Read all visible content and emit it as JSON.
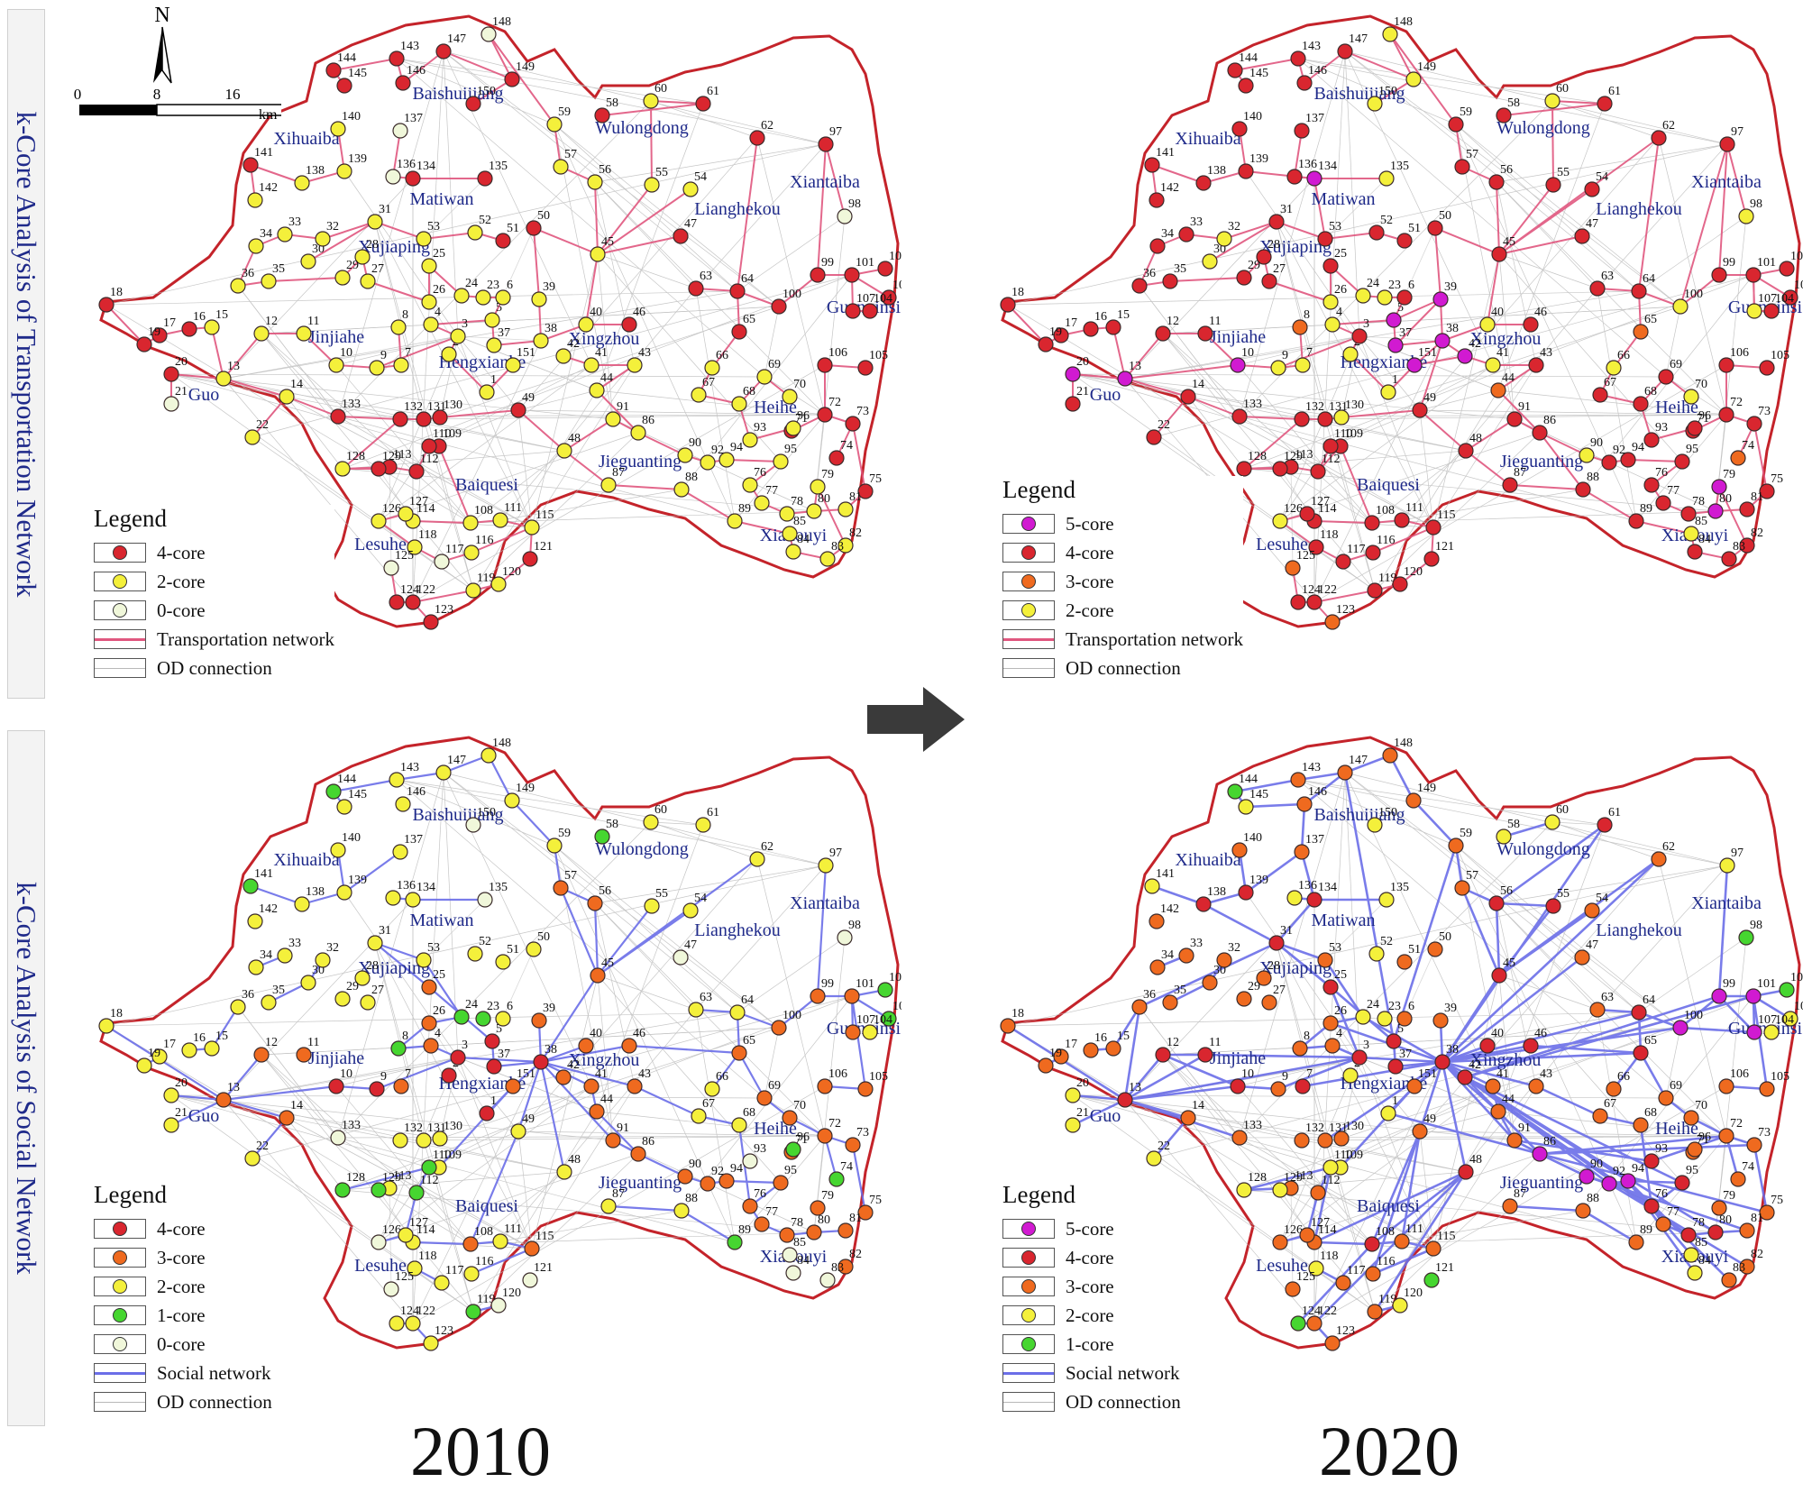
{
  "rows": {
    "transport_label": "k-Core Analysis of Transportation Network",
    "social_label": "k-Core Analysis of Social Network"
  },
  "years": {
    "left": "2010",
    "right": "2020"
  },
  "north_label": "N",
  "scale": {
    "ticks": [
      "0",
      "8",
      "16"
    ],
    "unit": "km"
  },
  "colors": {
    "core5": "#d11ad1",
    "core4": "#d9262f",
    "core3": "#ef6a1f",
    "core2": "#f4f03b",
    "core1": "#46d630",
    "core0": "#f0f7da",
    "transport_line": "#e0577f",
    "social_line": "#6b6ee8",
    "od_line": "#b8b8b8",
    "boundary": "#c4232a"
  },
  "places": [
    "Baishuijiang",
    "Wulongdong",
    "Xihuaiba",
    "Matiwan",
    "Xujiaping",
    "Xiantaiba",
    "Lianghekou",
    "Guanyinsi",
    "Jinjiahe",
    "Hengxianhe",
    "Xingzhou",
    "Guo",
    "Heihe",
    "Jieguanting",
    "Baiquesi",
    "Lesuhe",
    "Xiakouyi"
  ],
  "panels": {
    "t2010": {
      "legend_title": "Legend",
      "items": [
        {
          "label": "4-core",
          "kind": "core",
          "core": 4
        },
        {
          "label": "2-core",
          "kind": "core",
          "core": 2
        },
        {
          "label": "0-core",
          "kind": "core",
          "core": 0
        },
        {
          "label": "Transportation network",
          "kind": "line",
          "line": "transport"
        },
        {
          "label": "OD connection",
          "kind": "line",
          "line": "od"
        }
      ]
    },
    "t2020": {
      "legend_title": "Legend",
      "items": [
        {
          "label": "5-core",
          "kind": "core",
          "core": 5
        },
        {
          "label": "4-core",
          "kind": "core",
          "core": 4
        },
        {
          "label": "3-core",
          "kind": "core",
          "core": 3
        },
        {
          "label": "2-core",
          "kind": "core",
          "core": 2
        },
        {
          "label": "Transportation network",
          "kind": "line",
          "line": "transport"
        },
        {
          "label": "OD connection",
          "kind": "line",
          "line": "od"
        }
      ]
    },
    "s2010": {
      "legend_title": "Legend",
      "items": [
        {
          "label": "4-core",
          "kind": "core",
          "core": 4
        },
        {
          "label": "3-core",
          "kind": "core",
          "core": 3
        },
        {
          "label": "2-core",
          "kind": "core",
          "core": 2
        },
        {
          "label": "1-core",
          "kind": "core",
          "core": 1
        },
        {
          "label": "0-core",
          "kind": "core",
          "core": 0
        },
        {
          "label": "Social network",
          "kind": "line",
          "line": "social"
        },
        {
          "label": "OD connection",
          "kind": "line",
          "line": "od"
        }
      ]
    },
    "s2020": {
      "legend_title": "Legend",
      "items": [
        {
          "label": "5-core",
          "kind": "core",
          "core": 5
        },
        {
          "label": "4-core",
          "kind": "core",
          "core": 4
        },
        {
          "label": "3-core",
          "kind": "core",
          "core": 3
        },
        {
          "label": "2-core",
          "kind": "core",
          "core": 2
        },
        {
          "label": "1-core",
          "kind": "core",
          "core": 1
        },
        {
          "label": "Social network",
          "kind": "line",
          "line": "social"
        },
        {
          "label": "OD connection",
          "kind": "line",
          "line": "od"
        }
      ]
    }
  },
  "nodes": [
    {
      "id": "1",
      "c": [
        2,
        2,
        4,
        2
      ]
    },
    {
      "id": "2",
      "c": [
        2,
        2,
        4,
        2
      ]
    },
    {
      "id": "3",
      "c": [
        2,
        4,
        4,
        4
      ]
    },
    {
      "id": "4",
      "c": [
        2,
        2,
        3,
        3
      ]
    },
    {
      "id": "5",
      "c": [
        2,
        5,
        4,
        4
      ]
    },
    {
      "id": "6",
      "c": [
        2,
        4,
        2,
        3
      ]
    },
    {
      "id": "7",
      "c": [
        2,
        2,
        3,
        4
      ]
    },
    {
      "id": "8",
      "c": [
        2,
        3,
        1,
        3
      ]
    },
    {
      "id": "9",
      "c": [
        2,
        2,
        4,
        3
      ]
    },
    {
      "id": "10",
      "c": [
        2,
        5,
        4,
        4
      ]
    },
    {
      "id": "11",
      "c": [
        2,
        4,
        3,
        4
      ]
    },
    {
      "id": "12",
      "c": [
        2,
        4,
        3,
        4
      ]
    },
    {
      "id": "13",
      "c": [
        2,
        5,
        3,
        4
      ]
    },
    {
      "id": "14",
      "c": [
        2,
        4,
        3,
        3
      ]
    },
    {
      "id": "15",
      "c": [
        2,
        4,
        2,
        3
      ]
    },
    {
      "id": "16",
      "c": [
        4,
        4,
        2,
        3
      ]
    },
    {
      "id": "17",
      "c": [
        4,
        4,
        2,
        3
      ]
    },
    {
      "id": "18",
      "c": [
        4,
        4,
        2,
        3
      ]
    },
    {
      "id": "19",
      "c": [
        4,
        4,
        2,
        3
      ]
    },
    {
      "id": "20",
      "c": [
        4,
        5,
        2,
        2
      ]
    },
    {
      "id": "21",
      "c": [
        0,
        4,
        2,
        2
      ]
    },
    {
      "id": "22",
      "c": [
        2,
        4,
        2,
        2
      ]
    },
    {
      "id": "23",
      "c": [
        2,
        2,
        1,
        2
      ]
    },
    {
      "id": "24",
      "c": [
        2,
        2,
        1,
        2
      ]
    },
    {
      "id": "25",
      "c": [
        2,
        4,
        3,
        4
      ]
    },
    {
      "id": "26",
      "c": [
        2,
        2,
        3,
        3
      ]
    },
    {
      "id": "27",
      "c": [
        2,
        4,
        2,
        3
      ]
    },
    {
      "id": "28",
      "c": [
        2,
        4,
        2,
        3
      ]
    },
    {
      "id": "29",
      "c": [
        2,
        4,
        2,
        3
      ]
    },
    {
      "id": "30",
      "c": [
        2,
        2,
        2,
        3
      ]
    },
    {
      "id": "31",
      "c": [
        2,
        4,
        2,
        4
      ]
    },
    {
      "id": "32",
      "c": [
        2,
        2,
        2,
        3
      ]
    },
    {
      "id": "33",
      "c": [
        2,
        4,
        2,
        3
      ]
    },
    {
      "id": "34",
      "c": [
        2,
        4,
        2,
        3
      ]
    },
    {
      "id": "35",
      "c": [
        2,
        4,
        2,
        3
      ]
    },
    {
      "id": "36",
      "c": [
        2,
        4,
        2,
        3
      ]
    },
    {
      "id": "37",
      "c": [
        2,
        5,
        4,
        4
      ]
    },
    {
      "id": "38",
      "c": [
        2,
        5,
        4,
        4
      ]
    },
    {
      "id": "39",
      "c": [
        2,
        5,
        3,
        3
      ]
    },
    {
      "id": "40",
      "c": [
        2,
        2,
        3,
        4
      ]
    },
    {
      "id": "41",
      "c": [
        2,
        2,
        3,
        3
      ]
    },
    {
      "id": "42",
      "c": [
        2,
        5,
        3,
        4
      ]
    },
    {
      "id": "43",
      "c": [
        2,
        4,
        3,
        3
      ]
    },
    {
      "id": "44",
      "c": [
        2,
        3,
        3,
        3
      ]
    },
    {
      "id": "45",
      "c": [
        2,
        4,
        3,
        4
      ]
    },
    {
      "id": "46",
      "c": [
        4,
        4,
        3,
        4
      ]
    },
    {
      "id": "47",
      "c": [
        4,
        4,
        0,
        3
      ]
    },
    {
      "id": "48",
      "c": [
        2,
        4,
        2,
        4
      ]
    },
    {
      "id": "49",
      "c": [
        4,
        4,
        2,
        3
      ]
    },
    {
      "id": "50",
      "c": [
        4,
        4,
        2,
        3
      ]
    },
    {
      "id": "51",
      "c": [
        4,
        4,
        2,
        3
      ]
    },
    {
      "id": "52",
      "c": [
        2,
        4,
        2,
        2
      ]
    },
    {
      "id": "53",
      "c": [
        2,
        4,
        2,
        3
      ]
    },
    {
      "id": "54",
      "c": [
        2,
        4,
        2,
        3
      ]
    },
    {
      "id": "55",
      "c": [
        2,
        4,
        2,
        4
      ]
    },
    {
      "id": "56",
      "c": [
        2,
        4,
        3,
        4
      ]
    },
    {
      "id": "57",
      "c": [
        2,
        4,
        3,
        3
      ]
    },
    {
      "id": "58",
      "c": [
        4,
        4,
        1,
        2
      ]
    },
    {
      "id": "59",
      "c": [
        2,
        4,
        2,
        3
      ]
    },
    {
      "id": "60",
      "c": [
        2,
        2,
        2,
        2
      ]
    },
    {
      "id": "61",
      "c": [
        4,
        4,
        2,
        4
      ]
    },
    {
      "id": "62",
      "c": [
        4,
        4,
        2,
        3
      ]
    },
    {
      "id": "63",
      "c": [
        4,
        4,
        2,
        3
      ]
    },
    {
      "id": "64",
      "c": [
        4,
        4,
        2,
        4
      ]
    },
    {
      "id": "65",
      "c": [
        4,
        3,
        3,
        4
      ]
    },
    {
      "id": "66",
      "c": [
        2,
        2,
        2,
        3
      ]
    },
    {
      "id": "67",
      "c": [
        2,
        4,
        2,
        3
      ]
    },
    {
      "id": "68",
      "c": [
        2,
        4,
        2,
        3
      ]
    },
    {
      "id": "69",
      "c": [
        2,
        4,
        3,
        3
      ]
    },
    {
      "id": "70",
      "c": [
        2,
        2,
        3,
        3
      ]
    },
    {
      "id": "71",
      "c": [
        4,
        4,
        3,
        3
      ]
    },
    {
      "id": "72",
      "c": [
        4,
        4,
        3,
        3
      ]
    },
    {
      "id": "73",
      "c": [
        4,
        4,
        3,
        3
      ]
    },
    {
      "id": "74",
      "c": [
        4,
        3,
        1,
        3
      ]
    },
    {
      "id": "75",
      "c": [
        4,
        4,
        3,
        3
      ]
    },
    {
      "id": "76",
      "c": [
        2,
        4,
        3,
        4
      ]
    },
    {
      "id": "77",
      "c": [
        2,
        4,
        3,
        3
      ]
    },
    {
      "id": "78",
      "c": [
        2,
        4,
        3,
        4
      ]
    },
    {
      "id": "79",
      "c": [
        2,
        5,
        3,
        3
      ]
    },
    {
      "id": "80",
      "c": [
        2,
        5,
        3,
        4
      ]
    },
    {
      "id": "81",
      "c": [
        2,
        4,
        3,
        3
      ]
    },
    {
      "id": "82",
      "c": [
        2,
        4,
        3,
        3
      ]
    },
    {
      "id": "83",
      "c": [
        2,
        4,
        0,
        3
      ]
    },
    {
      "id": "84",
      "c": [
        2,
        4,
        0,
        2
      ]
    },
    {
      "id": "85",
      "c": [
        2,
        2,
        0,
        2
      ]
    },
    {
      "id": "86",
      "c": [
        2,
        4,
        3,
        5
      ]
    },
    {
      "id": "87",
      "c": [
        2,
        4,
        2,
        3
      ]
    },
    {
      "id": "88",
      "c": [
        2,
        4,
        2,
        3
      ]
    },
    {
      "id": "89",
      "c": [
        2,
        4,
        1,
        3
      ]
    },
    {
      "id": "90",
      "c": [
        2,
        2,
        3,
        5
      ]
    },
    {
      "id": "91",
      "c": [
        2,
        4,
        3,
        3
      ]
    },
    {
      "id": "92",
      "c": [
        2,
        4,
        3,
        5
      ]
    },
    {
      "id": "93",
      "c": [
        2,
        4,
        0,
        4
      ]
    },
    {
      "id": "94",
      "c": [
        2,
        4,
        3,
        5
      ]
    },
    {
      "id": "95",
      "c": [
        2,
        4,
        3,
        4
      ]
    },
    {
      "id": "96",
      "c": [
        2,
        4,
        1,
        3
      ]
    },
    {
      "id": "97",
      "c": [
        4,
        4,
        2,
        2
      ]
    },
    {
      "id": "98",
      "c": [
        0,
        2,
        0,
        1
      ]
    },
    {
      "id": "99",
      "c": [
        4,
        4,
        3,
        5
      ]
    },
    {
      "id": "100",
      "c": [
        4,
        2,
        3,
        5
      ]
    },
    {
      "id": "101",
      "c": [
        4,
        4,
        3,
        5
      ]
    },
    {
      "id": "102",
      "c": [
        4,
        4,
        1,
        1
      ]
    },
    {
      "id": "103",
      "c": [
        4,
        4,
        1,
        2
      ]
    },
    {
      "id": "104",
      "c": [
        4,
        4,
        2,
        2
      ]
    },
    {
      "id": "105",
      "c": [
        4,
        4,
        3,
        3
      ]
    },
    {
      "id": "106",
      "c": [
        4,
        4,
        3,
        3
      ]
    },
    {
      "id": "107",
      "c": [
        4,
        2,
        3,
        5
      ]
    },
    {
      "id": "108",
      "c": [
        2,
        4,
        3,
        4
      ]
    },
    {
      "id": "109",
      "c": [
        4,
        4,
        2,
        2
      ]
    },
    {
      "id": "110",
      "c": [
        4,
        4,
        1,
        2
      ]
    },
    {
      "id": "111",
      "c": [
        2,
        4,
        2,
        3
      ]
    },
    {
      "id": "112",
      "c": [
        4,
        4,
        1,
        3
      ]
    },
    {
      "id": "113",
      "c": [
        4,
        4,
        2,
        3
      ]
    },
    {
      "id": "114",
      "c": [
        2,
        4,
        2,
        3
      ]
    },
    {
      "id": "115",
      "c": [
        2,
        4,
        3,
        3
      ]
    },
    {
      "id": "116",
      "c": [
        2,
        4,
        2,
        3
      ]
    },
    {
      "id": "117",
      "c": [
        0,
        4,
        2,
        3
      ]
    },
    {
      "id": "118",
      "c": [
        2,
        4,
        2,
        2
      ]
    },
    {
      "id": "119",
      "c": [
        2,
        4,
        1,
        3
      ]
    },
    {
      "id": "120",
      "c": [
        2,
        4,
        0,
        2
      ]
    },
    {
      "id": "121",
      "c": [
        4,
        4,
        0,
        1
      ]
    },
    {
      "id": "122",
      "c": [
        4,
        4,
        2,
        3
      ]
    },
    {
      "id": "123",
      "c": [
        4,
        3,
        2,
        3
      ]
    },
    {
      "id": "124",
      "c": [
        4,
        4,
        2,
        1
      ]
    },
    {
      "id": "125",
      "c": [
        0,
        3,
        0,
        3
      ]
    },
    {
      "id": "126",
      "c": [
        2,
        2,
        0,
        3
      ]
    },
    {
      "id": "127",
      "c": [
        2,
        4,
        2,
        3
      ]
    },
    {
      "id": "128",
      "c": [
        2,
        4,
        1,
        2
      ]
    },
    {
      "id": "129",
      "c": [
        4,
        4,
        1,
        2
      ]
    },
    {
      "id": "130",
      "c": [
        4,
        2,
        2,
        3
      ]
    },
    {
      "id": "131",
      "c": [
        4,
        4,
        2,
        3
      ]
    },
    {
      "id": "132",
      "c": [
        4,
        4,
        2,
        3
      ]
    },
    {
      "id": "133",
      "c": [
        4,
        4,
        0,
        3
      ]
    },
    {
      "id": "134",
      "c": [
        4,
        5,
        2,
        4
      ]
    },
    {
      "id": "135",
      "c": [
        4,
        2,
        0,
        2
      ]
    },
    {
      "id": "136",
      "c": [
        0,
        4,
        2,
        2
      ]
    },
    {
      "id": "137",
      "c": [
        0,
        4,
        2,
        3
      ]
    },
    {
      "id": "138",
      "c": [
        2,
        4,
        2,
        4
      ]
    },
    {
      "id": "139",
      "c": [
        2,
        4,
        2,
        4
      ]
    },
    {
      "id": "140",
      "c": [
        2,
        4,
        2,
        3
      ]
    },
    {
      "id": "141",
      "c": [
        4,
        4,
        1,
        2
      ]
    },
    {
      "id": "142",
      "c": [
        2,
        4,
        2,
        3
      ]
    },
    {
      "id": "143",
      "c": [
        4,
        4,
        2,
        3
      ]
    },
    {
      "id": "144",
      "c": [
        4,
        4,
        1,
        1
      ]
    },
    {
      "id": "145",
      "c": [
        4,
        4,
        2,
        2
      ]
    },
    {
      "id": "146",
      "c": [
        4,
        4,
        2,
        3
      ]
    },
    {
      "id": "147",
      "c": [
        4,
        4,
        2,
        3
      ]
    },
    {
      "id": "148",
      "c": [
        0,
        2,
        2,
        3
      ]
    },
    {
      "id": "149",
      "c": [
        4,
        2,
        2,
        3
      ]
    },
    {
      "id": "150",
      "c": [
        4,
        2,
        0,
        2
      ]
    },
    {
      "id": "151",
      "c": [
        2,
        5,
        3,
        3
      ]
    }
  ]
}
